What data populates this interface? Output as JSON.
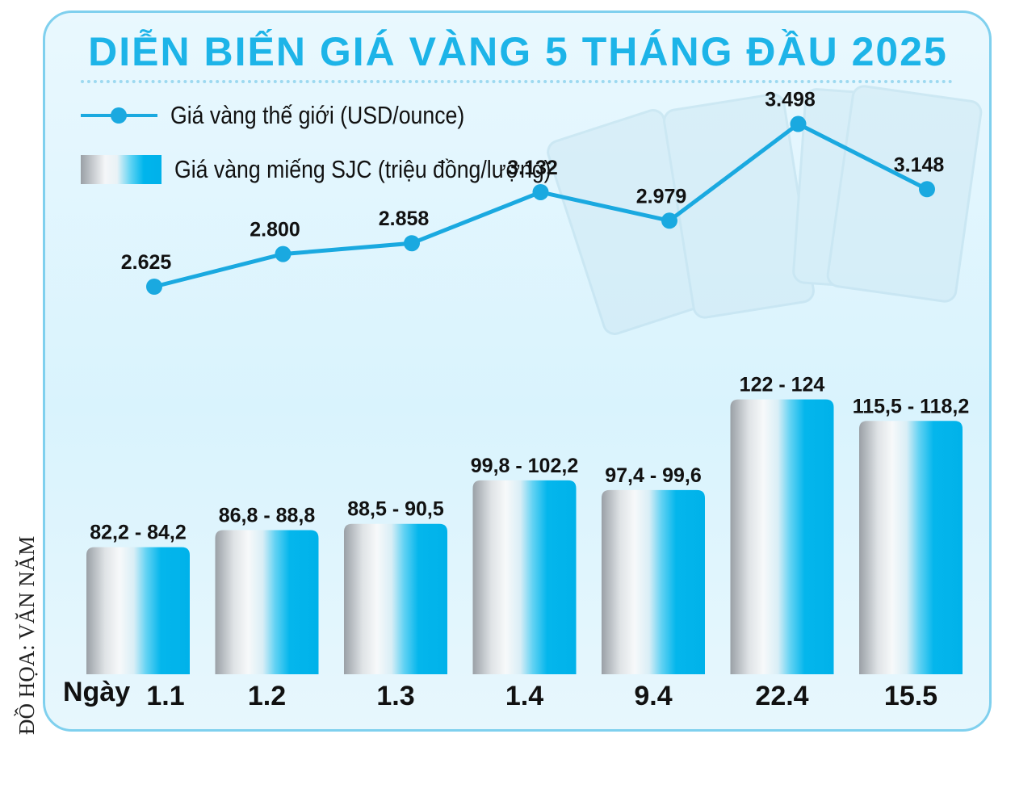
{
  "title": "DIỄN BIẾN GIÁ VÀNG 5 THÁNG ĐẦU 2025",
  "legend": {
    "line_label": "Giá vàng thế giới (USD/ounce)",
    "bar_label": "Giá vàng miếng SJC (triệu đồng/lượng)"
  },
  "x_prefix": "Ngày",
  "credit": "ĐỒ HỌA: VĂN NĂM",
  "colors": {
    "accent": "#1db4e8",
    "line": "#1aa9e0",
    "bar": "#00b5ec",
    "frame": "#7fd0ee"
  },
  "chart_data": {
    "type": "bar+line",
    "categories": [
      "1.1",
      "1.2",
      "1.3",
      "1.4",
      "9.4",
      "22.4",
      "15.5"
    ],
    "series": [
      {
        "name": "Giá vàng miếng SJC (triệu đồng/lượng)",
        "type": "bar",
        "buy": [
          82.2,
          86.8,
          88.5,
          99.8,
          97.4,
          122,
          115.5
        ],
        "sell": [
          84.2,
          88.8,
          90.5,
          102.2,
          99.6,
          124,
          118.2
        ],
        "labels": [
          "82,2 - 84,2",
          "86,8 - 88,8",
          "88,5 - 90,5",
          "99,8 - 102,2",
          "97,4 - 99,6",
          "122 - 124",
          "115,5 - 118,2"
        ]
      },
      {
        "name": "Giá vàng thế giới (USD/ounce)",
        "type": "line",
        "values": [
          2625,
          2800,
          2858,
          3132,
          2979,
          3498,
          3148
        ],
        "labels": [
          "2.625",
          "2.800",
          "2.858",
          "3.132",
          "2.979",
          "3.498",
          "3.148"
        ]
      }
    ],
    "legend": "top-left",
    "grid": false
  }
}
